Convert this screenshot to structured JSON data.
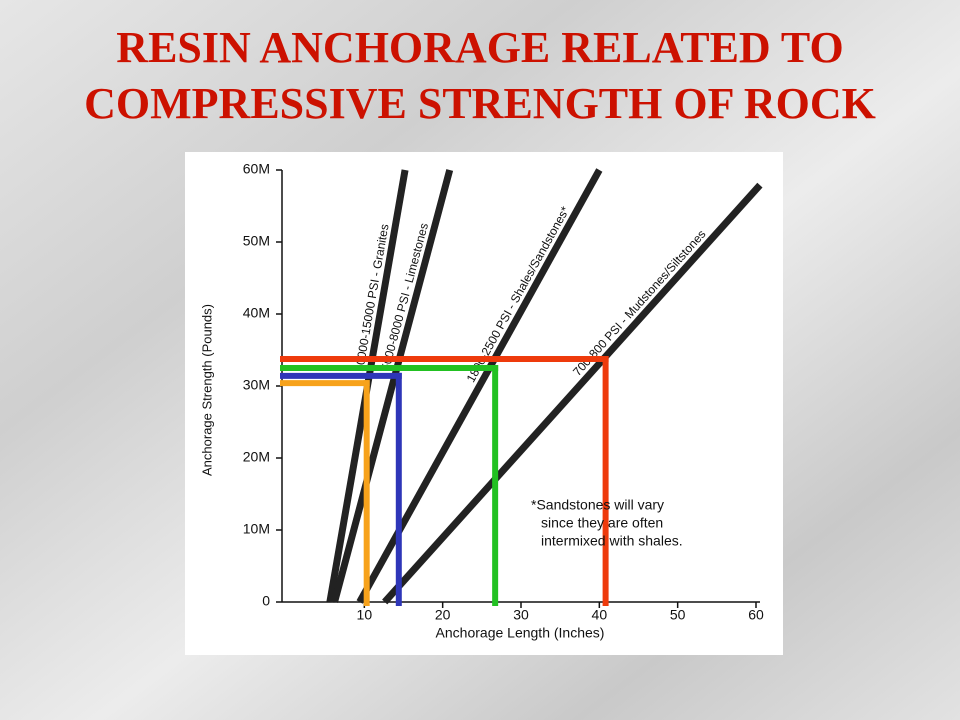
{
  "chart_data": {
    "type": "line",
    "title": [
      "RESIN ANCHORAGE RELATED TO",
      "COMPRESSIVE STRENGTH OF ROCK"
    ],
    "x_label": "Anchorage Length (Inches)",
    "y_label": "Anchorage Strength (Pounds)",
    "xlim": [
      0,
      60
    ],
    "xticks": [
      10,
      20,
      30,
      40,
      50,
      60
    ],
    "ylim": [
      0,
      60
    ],
    "yticks": [
      0,
      {
        "value": 10,
        "label": "10M"
      },
      {
        "value": 20,
        "label": "20M"
      },
      {
        "value": 30,
        "label": "30M"
      },
      {
        "value": 40,
        "label": "40M"
      },
      {
        "value": 50,
        "label": "50M"
      },
      {
        "value": 60,
        "label": "60M"
      }
    ],
    "series": [
      {
        "name": "10000-15000 PSI - Granites",
        "color": "#222222",
        "x": [
          5.6,
          15.2
        ],
        "values": [
          0,
          60
        ]
      },
      {
        "name": "5000-8000 PSI - Limestones",
        "color": "#222222",
        "x": [
          6.2,
          20.9
        ],
        "values": [
          0,
          60
        ]
      },
      {
        "name": "1800-2500 PSI - Shales/Sandstones*",
        "color": "#222222",
        "x": [
          9.4,
          40.0
        ],
        "values": [
          0,
          60
        ]
      },
      {
        "name": "700-800 PSI - Mudstones/Siltstones",
        "color": "#222222",
        "x": [
          12.6,
          60.5
        ],
        "values": [
          0,
          57.9
        ]
      }
    ],
    "highlights": [
      {
        "color": "#f7a21b",
        "x": 10.3,
        "y": 30.4
      },
      {
        "color": "#2e36b8",
        "x": 14.4,
        "y": 31.4
      },
      {
        "color": "#22c122",
        "x": 26.7,
        "y": 32.5
      },
      {
        "color": "#ee3a0c",
        "x": 40.8,
        "y": 33.75
      }
    ],
    "annotation": [
      "*Sandstones will vary",
      "since they are often",
      "intermixed with shales."
    ]
  }
}
